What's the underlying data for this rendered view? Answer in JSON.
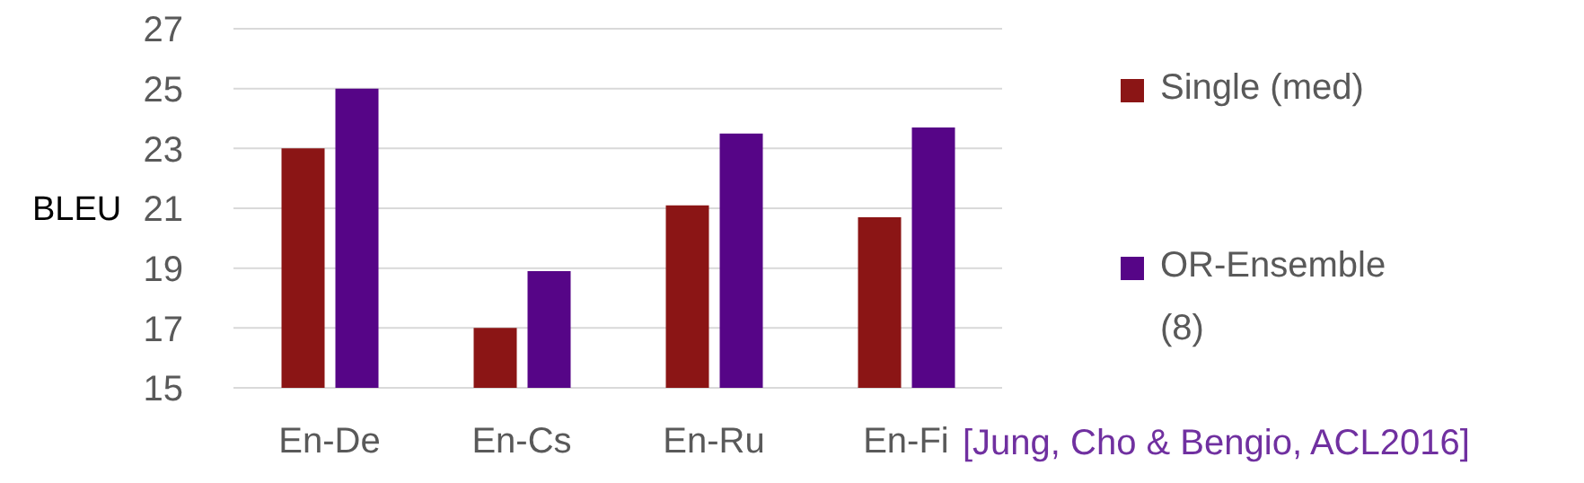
{
  "chart_data": {
    "type": "bar",
    "ylabel": "BLEU",
    "categories": [
      "En-De",
      "En-Cs",
      "En-Ru",
      "En-Fi"
    ],
    "series": [
      {
        "name": "Single (med)",
        "color": "#8b1515",
        "values": [
          23.0,
          17.0,
          21.1,
          20.7
        ]
      },
      {
        "name": "OR-Ensemble (8)",
        "color": "#560587",
        "values": [
          25.0,
          18.9,
          23.5,
          23.7
        ]
      }
    ],
    "ylim": [
      15,
      27
    ],
    "yticks": [
      15,
      17,
      19,
      21,
      23,
      25,
      27
    ],
    "grid": "y",
    "legend": "right",
    "annotations": [
      "[Jung, Cho & Bengio, ACL2016]"
    ]
  }
}
